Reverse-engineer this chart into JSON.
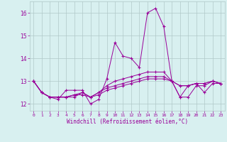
{
  "x": [
    0,
    1,
    2,
    3,
    4,
    5,
    6,
    7,
    8,
    9,
    10,
    11,
    12,
    13,
    14,
    15,
    16,
    17,
    18,
    19,
    20,
    21,
    22,
    23
  ],
  "line1": [
    13.0,
    12.5,
    12.3,
    12.2,
    12.6,
    12.6,
    12.6,
    12.0,
    12.2,
    13.1,
    14.7,
    14.1,
    14.0,
    13.6,
    16.0,
    16.2,
    15.4,
    13.0,
    12.3,
    12.3,
    12.8,
    12.8,
    13.0,
    12.9
  ],
  "line2": [
    13.0,
    12.5,
    12.3,
    12.3,
    12.3,
    12.3,
    12.5,
    12.3,
    12.5,
    12.8,
    13.0,
    13.1,
    13.2,
    13.3,
    13.4,
    13.4,
    13.4,
    13.0,
    12.3,
    12.8,
    12.9,
    12.9,
    13.0,
    12.9
  ],
  "line3": [
    13.0,
    12.5,
    12.3,
    12.3,
    12.3,
    12.4,
    12.5,
    12.3,
    12.5,
    12.7,
    12.8,
    12.9,
    13.0,
    13.1,
    13.2,
    13.2,
    13.2,
    13.0,
    12.8,
    12.8,
    12.9,
    12.9,
    13.0,
    12.9
  ],
  "line4": [
    13.0,
    12.5,
    12.3,
    12.3,
    12.3,
    12.4,
    12.4,
    12.3,
    12.4,
    12.6,
    12.7,
    12.8,
    12.9,
    13.0,
    13.1,
    13.1,
    13.1,
    13.0,
    12.8,
    12.8,
    12.9,
    12.5,
    12.9,
    12.9
  ],
  "line_color": "#990099",
  "bg_color": "#d8f0f0",
  "grid_color": "#b0c8c8",
  "xlabel": "Windchill (Refroidissement éolien,°C)",
  "ylim": [
    11.7,
    16.5
  ],
  "xlim": [
    -0.5,
    23.5
  ],
  "yticks": [
    12,
    13,
    14,
    15,
    16
  ],
  "xticks": [
    0,
    1,
    2,
    3,
    4,
    5,
    6,
    7,
    8,
    9,
    10,
    11,
    12,
    13,
    14,
    15,
    16,
    17,
    18,
    19,
    20,
    21,
    22,
    23
  ]
}
